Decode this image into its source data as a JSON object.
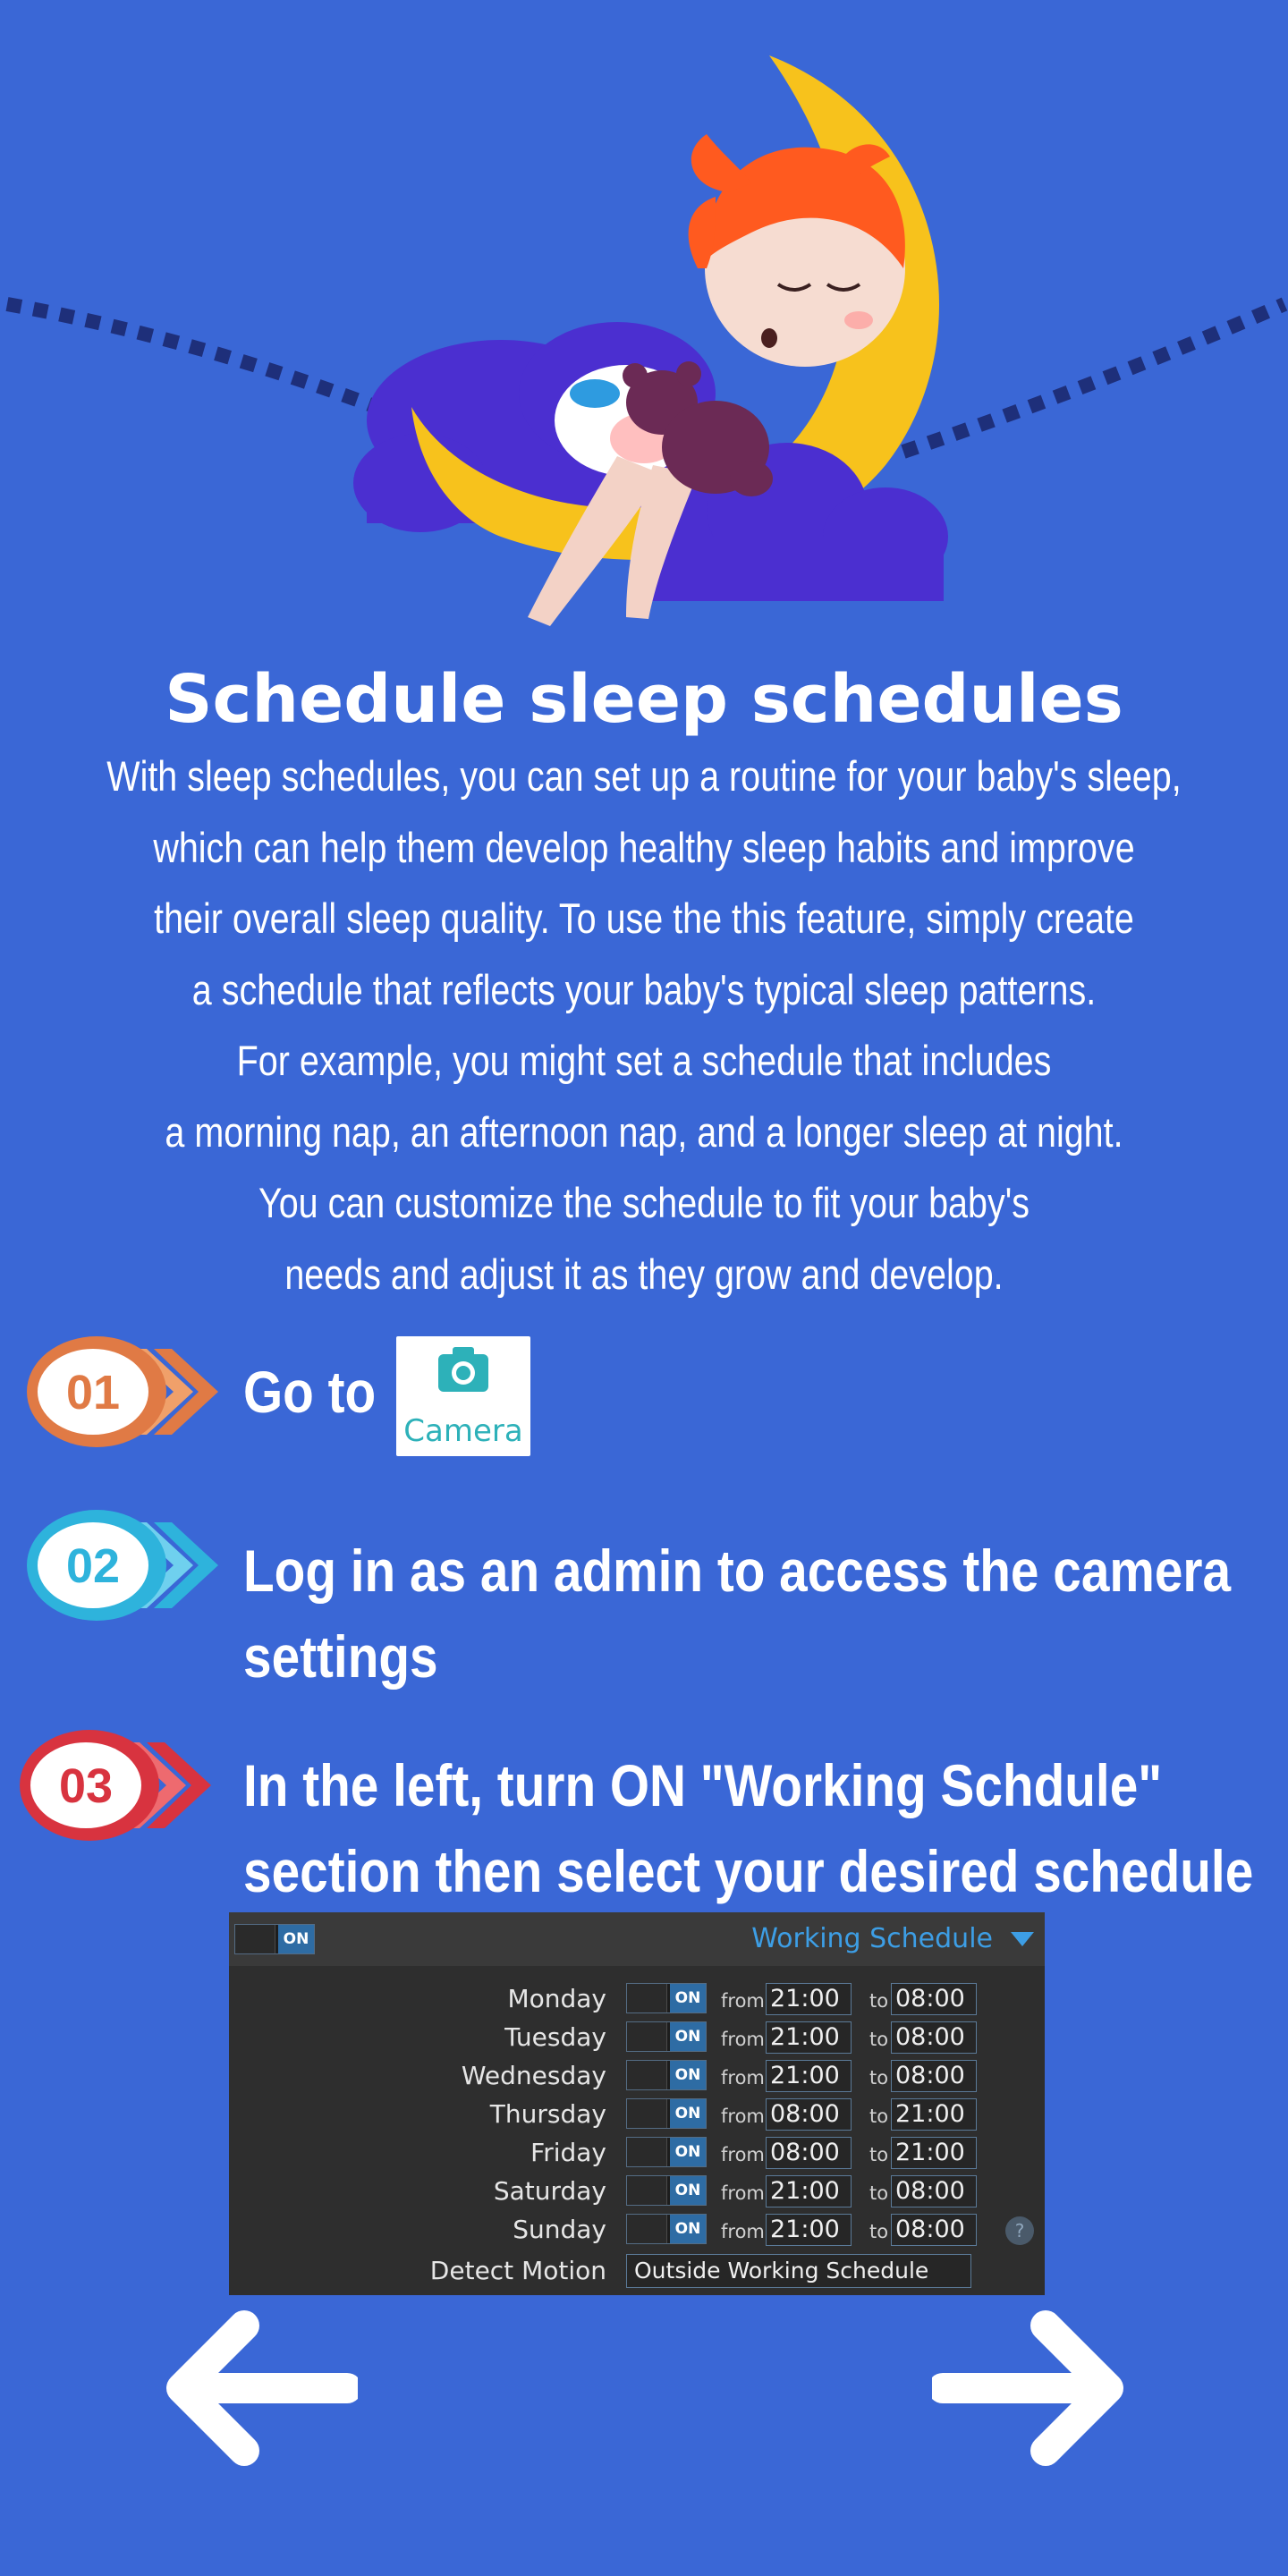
{
  "title": "Schedule sleep schedules",
  "intro_lines": [
    "With sleep schedules, you can set up a routine for your baby's sleep,",
    "which can help them develop healthy sleep habits and improve",
    "their overall sleep quality. To use the this feature, simply create",
    "a schedule that reflects your baby's typical sleep patterns.",
    "For example, you might set a schedule that includes",
    "a morning nap, an afternoon nap, and a longer sleep at night.",
    "You can customize the schedule to fit your baby's",
    "needs and adjust it as they grow and develop."
  ],
  "steps": [
    {
      "number": "01",
      "text": "Go to",
      "color": "#e07a45"
    },
    {
      "number": "02",
      "lines": [
        "Log in as an admin to access the camera",
        "settings"
      ],
      "color": "#2eb3dc"
    },
    {
      "number": "03",
      "lines": [
        "In the left, turn ON \"Working Schdule\"",
        "section then select your desired schedule"
      ],
      "color": "#d8333f"
    }
  ],
  "camera_tile": {
    "label": "Camera",
    "icon": "camera-icon",
    "color": "#2db1b9"
  },
  "panel": {
    "master_toggle": "ON",
    "schedule_title": "Working Schedule",
    "from_label": "from",
    "to_label": "to",
    "rows": [
      {
        "day": "Monday",
        "toggle": "ON",
        "from": "21:00",
        "to": "08:00"
      },
      {
        "day": "Tuesday",
        "toggle": "ON",
        "from": "21:00",
        "to": "08:00"
      },
      {
        "day": "Wednesday",
        "toggle": "ON",
        "from": "21:00",
        "to": "08:00"
      },
      {
        "day": "Thursday",
        "toggle": "ON",
        "from": "08:00",
        "to": "21:00"
      },
      {
        "day": "Friday",
        "toggle": "ON",
        "from": "08:00",
        "to": "21:00"
      },
      {
        "day": "Saturday",
        "toggle": "ON",
        "from": "21:00",
        "to": "08:00"
      },
      {
        "day": "Sunday",
        "toggle": "ON",
        "from": "21:00",
        "to": "08:00"
      }
    ],
    "help": "?",
    "detect_motion_label": "Detect Motion",
    "detect_motion_value": "Outside Working Schedule"
  },
  "nav": {
    "prev_icon": "arrow-left-icon",
    "next_icon": "arrow-right-icon"
  },
  "colors": {
    "background": "#3a67d6",
    "moon": "#f7c21c",
    "cloud": "#4b2fd0",
    "panel": "#2e2e2e",
    "accent": "#3d9ee5"
  }
}
